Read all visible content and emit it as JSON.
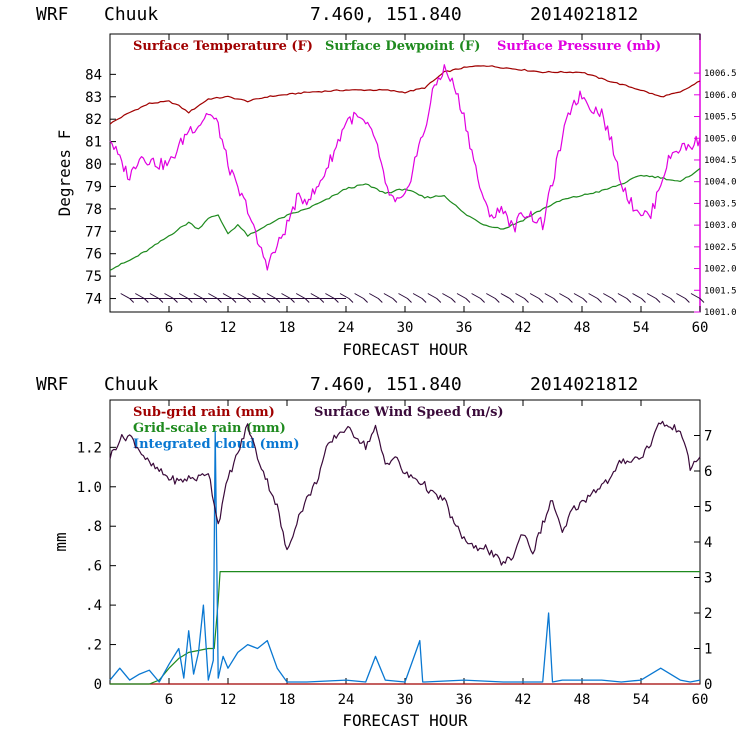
{
  "colors": {
    "temperature": "#a00000",
    "dewpoint": "#1e8a1e",
    "pressure": "#e000e0",
    "wind_barbs": "#2a0a3a",
    "subgrid_rain": "#a00000",
    "grid_rain": "#1e8a1e",
    "cloud": "#0a78d2",
    "wind_speed": "#3a0a3a",
    "axis_right_top": "#e000e0"
  },
  "chart_data": [
    {
      "type": "line",
      "header": {
        "model": "WRF",
        "station": "Chuuk",
        "coords": "7.460, 151.840",
        "init": "2014021812"
      },
      "xlabel": "FORECAST HOUR",
      "ylabel": "Degrees F",
      "xlim": [
        0,
        60
      ],
      "ylim": [
        73.4,
        85.8
      ],
      "y2lim": [
        1001.0,
        1007.4
      ],
      "xticks": [
        "6",
        "12",
        "18",
        "24",
        "30",
        "36",
        "42",
        "48",
        "54",
        "60"
      ],
      "yticks": [
        "74",
        "75",
        "76",
        "77",
        "78",
        "79",
        "80",
        "81",
        "82",
        "83",
        "84"
      ],
      "y2ticks": [
        "1001.0",
        "1001.5",
        "1002.0",
        "1002.5",
        "1003.0",
        "1003.5",
        "1004.0",
        "1004.5",
        "1005.0",
        "1005.5",
        "1006.0",
        "1006.5"
      ],
      "legend": [
        "Surface Temperature (F)",
        "Surface Dewpoint (F)",
        "Surface Pressure (mb)"
      ],
      "series": [
        {
          "name": "Surface Temperature (F)",
          "axis": "left",
          "x": [
            0,
            2,
            4,
            6,
            7,
            8,
            10,
            12,
            13,
            14,
            16,
            18,
            20,
            24,
            28,
            30,
            32,
            34,
            36,
            38,
            40,
            44,
            48,
            50,
            54,
            56,
            58,
            60
          ],
          "y": [
            81.8,
            82.3,
            82.7,
            82.8,
            82.6,
            82.3,
            82.9,
            83.0,
            82.9,
            82.8,
            83.0,
            83.1,
            83.2,
            83.3,
            83.3,
            83.2,
            83.4,
            84.1,
            84.3,
            84.4,
            84.3,
            84.1,
            84.1,
            83.8,
            83.3,
            83.0,
            83.2,
            83.7
          ]
        },
        {
          "name": "Surface Dewpoint (F)",
          "axis": "left",
          "x": [
            0,
            2,
            4,
            6,
            8,
            9,
            10,
            11,
            12,
            13,
            14,
            15,
            16,
            18,
            20,
            22,
            24,
            26,
            28,
            30,
            32,
            34,
            36,
            38,
            40,
            42,
            44,
            46,
            48,
            50,
            52,
            54,
            56,
            58,
            60
          ],
          "y": [
            75.3,
            75.7,
            76.2,
            76.8,
            77.4,
            77.1,
            77.6,
            77.7,
            76.9,
            77.3,
            76.8,
            77.0,
            77.3,
            77.7,
            78.0,
            78.4,
            78.9,
            79.1,
            78.7,
            78.9,
            78.5,
            78.6,
            77.8,
            77.3,
            77.1,
            77.5,
            78.0,
            78.4,
            78.6,
            78.8,
            79.1,
            79.5,
            79.4,
            79.2,
            79.8
          ]
        },
        {
          "name": "Surface Pressure (mb)",
          "axis": "right",
          "x": [
            0,
            1,
            2,
            3,
            4,
            5,
            6,
            7,
            8,
            9,
            10,
            11,
            12,
            13,
            14,
            15,
            16,
            17,
            18,
            19,
            20,
            21,
            22,
            23,
            24,
            25,
            26,
            27,
            28,
            29,
            30,
            31,
            32,
            33,
            34,
            35,
            36,
            37,
            38,
            39,
            40,
            41,
            42,
            43,
            44,
            45,
            46,
            47,
            48,
            49,
            50,
            51,
            52,
            53,
            54,
            55,
            56,
            57,
            58,
            59,
            60
          ],
          "y": [
            1005.0,
            1004.5,
            1004.1,
            1004.6,
            1004.5,
            1004.4,
            1004.4,
            1004.8,
            1005.2,
            1005.3,
            1005.6,
            1005.3,
            1004.4,
            1003.8,
            1003.4,
            1002.6,
            1002.1,
            1002.5,
            1003.0,
            1003.6,
            1003.6,
            1003.8,
            1004.3,
            1004.8,
            1005.4,
            1005.5,
            1005.3,
            1005.0,
            1003.9,
            1003.5,
            1003.6,
            1004.5,
            1005.2,
            1006.2,
            1006.6,
            1006.2,
            1005.5,
            1004.5,
            1003.5,
            1003.2,
            1003.4,
            1002.9,
            1003.3,
            1003.2,
            1003.0,
            1004.0,
            1005.0,
            1005.8,
            1006.0,
            1005.7,
            1005.6,
            1004.9,
            1004.0,
            1003.5,
            1003.3,
            1003.2,
            1004.0,
            1004.6,
            1004.8,
            1004.8,
            1005.0
          ]
        }
      ],
      "wind_barbs": {
        "x_start": 2,
        "x_end": 60,
        "count": 40,
        "y": 74.0
      }
    },
    {
      "type": "line",
      "header": {
        "model": "WRF",
        "station": "Chuuk",
        "coords": "7.460, 151.840",
        "init": "2014021812"
      },
      "xlabel": "FORECAST HOUR",
      "ylabel": "mm",
      "xlim": [
        0,
        60
      ],
      "ylim": [
        0,
        1.44
      ],
      "y2lim": [
        0,
        8
      ],
      "xticks": [
        "6",
        "12",
        "18",
        "24",
        "30",
        "36",
        "42",
        "48",
        "54",
        "60"
      ],
      "yticks": [
        "0",
        ".2",
        ".4",
        ".6",
        ".8",
        "1.0",
        "1.2"
      ],
      "y2ticks": [
        "0",
        "1",
        "2",
        "3",
        "4",
        "5",
        "6",
        "7"
      ],
      "legend": [
        "Sub-grid rain (mm)",
        "Surface Wind Speed (m/s)",
        "Grid-scale rain (mm)",
        "Integrated cloud (mm)"
      ],
      "series": [
        {
          "name": "Sub-grid rain (mm)",
          "axis": "left",
          "x": [
            0,
            60
          ],
          "y": [
            0,
            0
          ]
        },
        {
          "name": "Grid-scale rain (mm)",
          "axis": "left",
          "x": [
            0,
            4,
            5,
            6,
            7,
            8,
            9,
            10,
            10.6,
            11.0,
            11.2,
            60
          ],
          "y": [
            0,
            0,
            0.02,
            0.08,
            0.13,
            0.16,
            0.17,
            0.18,
            0.18,
            0.42,
            0.57,
            0.57
          ]
        },
        {
          "name": "Integrated cloud (mm)",
          "axis": "left",
          "x": [
            0,
            1,
            2,
            3,
            4,
            5,
            6,
            7,
            7.5,
            8,
            8.5,
            9,
            9.5,
            10,
            10.5,
            10.7,
            11,
            11.5,
            12,
            13,
            14,
            15,
            16,
            17,
            18,
            20,
            24,
            26,
            27,
            28,
            30,
            31.5,
            31.8,
            32,
            36,
            40,
            43,
            44,
            44.6,
            45,
            46,
            50,
            52,
            54,
            56,
            58,
            59,
            60
          ],
          "y": [
            0.02,
            0.08,
            0.02,
            0.05,
            0.07,
            0.01,
            0.1,
            0.18,
            0.03,
            0.27,
            0.05,
            0.16,
            0.4,
            0.02,
            0.12,
            1.28,
            0.03,
            0.14,
            0.08,
            0.16,
            0.2,
            0.18,
            0.22,
            0.08,
            0.01,
            0.01,
            0.02,
            0.01,
            0.14,
            0.02,
            0.01,
            0.22,
            0.01,
            0.01,
            0.02,
            0.01,
            0.01,
            0.01,
            0.36,
            0.01,
            0.02,
            0.02,
            0.01,
            0.02,
            0.08,
            0.02,
            0.01,
            0.02
          ]
        },
        {
          "name": "Surface Wind Speed (m/s)",
          "axis": "right",
          "x": [
            0,
            1,
            2,
            3,
            4,
            5,
            6,
            7,
            8,
            9,
            10,
            11,
            12,
            13,
            14,
            15,
            16,
            17,
            18,
            19,
            20,
            21,
            22,
            23,
            24,
            25,
            26,
            27,
            28,
            29,
            30,
            31,
            32,
            33,
            34,
            35,
            36,
            37,
            38,
            39,
            40,
            41,
            42,
            43,
            44,
            45,
            46,
            47,
            48,
            49,
            50,
            51,
            52,
            53,
            54,
            55,
            56,
            57,
            58,
            59,
            60
          ],
          "y": [
            6.4,
            6.9,
            7.0,
            6.6,
            6.2,
            6.0,
            5.8,
            5.7,
            5.8,
            5.8,
            6.0,
            4.5,
            5.8,
            6.5,
            7.3,
            6.4,
            5.7,
            5.0,
            3.7,
            4.6,
            5.2,
            5.7,
            6.6,
            7.0,
            7.2,
            7.0,
            6.7,
            7.2,
            6.2,
            6.4,
            5.9,
            5.8,
            5.6,
            5.3,
            5.2,
            4.5,
            4.1,
            3.8,
            3.9,
            3.6,
            3.4,
            3.6,
            4.3,
            3.7,
            4.5,
            5.2,
            4.2,
            4.9,
            5.1,
            5.4,
            5.6,
            5.8,
            6.3,
            6.3,
            6.4,
            6.8,
            7.4,
            7.2,
            7.2,
            6.1,
            6.4
          ]
        }
      ]
    }
  ]
}
